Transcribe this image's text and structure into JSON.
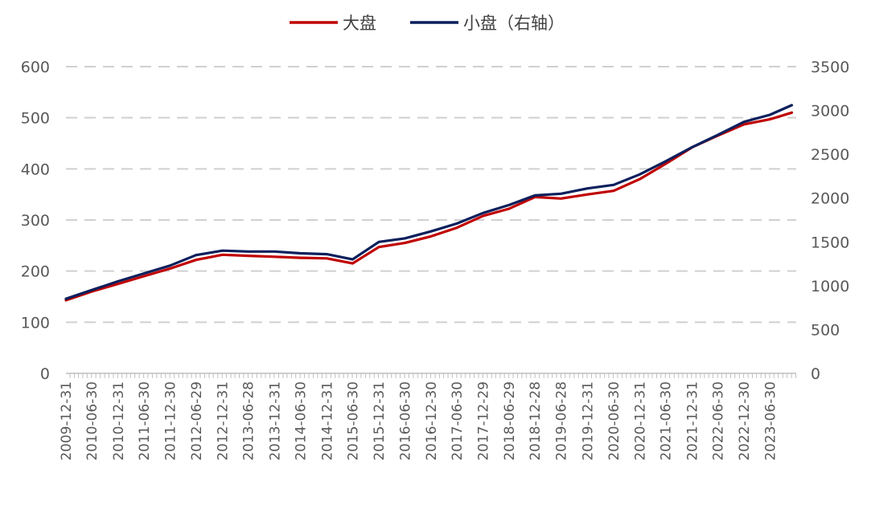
{
  "chart_data": {
    "type": "line",
    "title": "",
    "xlabel": "",
    "ylabel": "",
    "y_left_lim": [
      0,
      600
    ],
    "y_left_ticks": [
      "0",
      "100",
      "200",
      "300",
      "400",
      "500",
      "600"
    ],
    "y_right_lim": [
      0,
      3500
    ],
    "y_right_ticks": [
      "0",
      "500",
      "1000",
      "1500",
      "2000",
      "2500",
      "3000",
      "3500"
    ],
    "x_tick_labels": [
      "2009-12-31",
      "2010-06-30",
      "2010-12-31",
      "2011-06-30",
      "2011-12-30",
      "2012-06-29",
      "2012-12-31",
      "2013-06-28",
      "2013-12-31",
      "2014-06-30",
      "2014-12-31",
      "2015-06-30",
      "2015-12-31",
      "2016-06-30",
      "2016-12-30",
      "2017-06-30",
      "2017-12-29",
      "2018-06-29",
      "2018-12-28",
      "2019-06-28",
      "2019-12-31",
      "2020-06-30",
      "2020-12-31",
      "2021-06-30",
      "2021-12-31",
      "2022-06-30",
      "2022-12-30",
      "2023-06-30"
    ],
    "grid": true,
    "legend_position": "top-center",
    "colors": {
      "large_cap": "#C00000",
      "small_cap": "#0B1F5C",
      "gridline": "#D0D0D0",
      "axis_text": "#595959"
    },
    "legend": [
      {
        "label": "大盘",
        "color": "#C00000"
      },
      {
        "label": "小盘（右轴）",
        "color": "#0B1F5C"
      }
    ],
    "series": [
      {
        "name": "大盘",
        "axis": "left",
        "x": [
          "2009-12-31",
          "2010-06-30",
          "2010-12-31",
          "2011-06-30",
          "2011-12-30",
          "2012-06-29",
          "2012-12-31",
          "2013-06-28",
          "2013-12-31",
          "2014-06-30",
          "2014-12-31",
          "2015-06-30",
          "2015-12-31",
          "2016-06-30",
          "2016-12-30",
          "2017-06-30",
          "2017-12-29",
          "2018-06-29",
          "2018-12-28",
          "2019-06-28",
          "2019-12-31",
          "2020-06-30",
          "2020-12-31",
          "2021-06-30",
          "2021-12-31",
          "2022-06-30",
          "2022-12-30",
          "2023-06-30",
          "2023-11-30"
        ],
        "values": [
          143,
          160,
          175,
          190,
          205,
          222,
          232,
          230,
          228,
          226,
          225,
          215,
          247,
          255,
          268,
          285,
          308,
          322,
          345,
          342,
          350,
          357,
          380,
          410,
          442,
          465,
          487,
          497,
          510
        ]
      },
      {
        "name": "小盘（右轴）",
        "axis": "right",
        "x": [
          "2009-12-31",
          "2010-06-30",
          "2010-12-31",
          "2011-06-30",
          "2011-12-30",
          "2012-06-29",
          "2012-12-31",
          "2013-06-28",
          "2013-12-31",
          "2014-06-30",
          "2014-12-31",
          "2015-06-30",
          "2015-12-31",
          "2016-06-30",
          "2016-12-30",
          "2017-06-30",
          "2017-12-29",
          "2018-06-29",
          "2018-12-28",
          "2019-06-28",
          "2019-12-31",
          "2020-06-30",
          "2020-12-31",
          "2021-06-30",
          "2021-12-31",
          "2022-06-30",
          "2022-12-30",
          "2023-06-30",
          "2023-11-30"
        ],
        "values": [
          850,
          950,
          1050,
          1140,
          1230,
          1350,
          1400,
          1390,
          1390,
          1370,
          1360,
          1300,
          1500,
          1540,
          1620,
          1710,
          1830,
          1920,
          2030,
          2050,
          2110,
          2150,
          2270,
          2420,
          2580,
          2720,
          2870,
          2950,
          3060
        ]
      }
    ]
  }
}
